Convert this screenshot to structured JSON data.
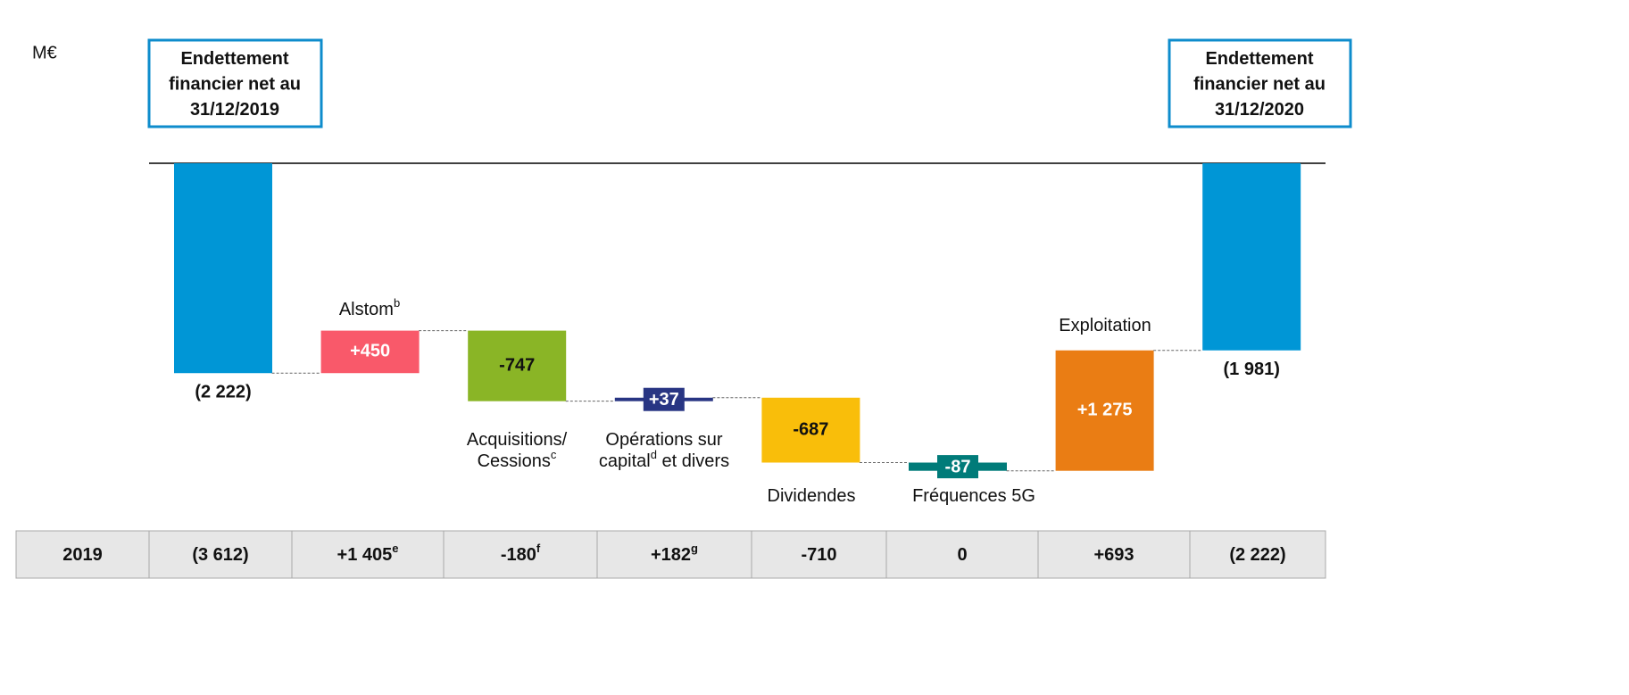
{
  "chart_data": {
    "type": "waterfall",
    "unit": "M€",
    "categories": [
      [
        [
          {
            "text": "Endettement"
          }
        ],
        [
          {
            "text": "financier net au"
          }
        ],
        [
          {
            "text": "31/12/2019"
          }
        ]
      ],
      [
        [
          {
            "text": "Alstom"
          },
          {
            "sup": "b"
          }
        ]
      ],
      [
        [
          {
            "text": "Acquisitions/"
          }
        ],
        [
          {
            "text": "Cessions"
          },
          {
            "sup": "c"
          }
        ]
      ],
      [
        [
          {
            "text": "Opérations sur"
          }
        ],
        [
          {
            "text": "capital"
          },
          {
            "sup": "d"
          },
          {
            "text": " et divers"
          }
        ]
      ],
      [
        [
          {
            "text": "Dividendes"
          }
        ]
      ],
      [
        [
          {
            "text": "Fréquences 5G"
          }
        ]
      ],
      [
        [
          {
            "text": "Exploitation"
          }
        ]
      ],
      [
        [
          {
            "text": "Endettement"
          }
        ],
        [
          {
            "text": "financier net au"
          }
        ],
        [
          {
            "text": "31/12/2020"
          }
        ]
      ]
    ],
    "values": [
      -2222,
      450,
      -747,
      37,
      -687,
      -87,
      1275,
      -1981
    ],
    "value_labels": [
      "(2 222)",
      "+450",
      "-747",
      "+37",
      "-687",
      "-87",
      "+1 275",
      "(1 981)"
    ],
    "is_total": [
      true,
      false,
      false,
      false,
      false,
      false,
      false,
      true
    ],
    "colors": [
      "#0096d6",
      "#f9596a",
      "#8ab526",
      "#283583",
      "#f9be0a",
      "#007b79",
      "#ea7d14",
      "#0096d6"
    ],
    "ylim": [
      -3750,
      0
    ],
    "table": [
      [
        {
          "text": "2019"
        }
      ],
      [
        {
          "text": "(3 612)"
        }
      ],
      [
        {
          "text": "+1 405"
        },
        {
          "sup": "e"
        }
      ],
      [
        {
          "text": "-180"
        },
        {
          "sup": "f"
        }
      ],
      [
        {
          "text": "+182"
        },
        {
          "sup": "g"
        }
      ],
      [
        {
          "text": "-710"
        }
      ],
      [
        {
          "text": "0"
        }
      ],
      [
        {
          "text": "+693"
        }
      ],
      [
        {
          "text": "(2 222)"
        }
      ]
    ]
  }
}
